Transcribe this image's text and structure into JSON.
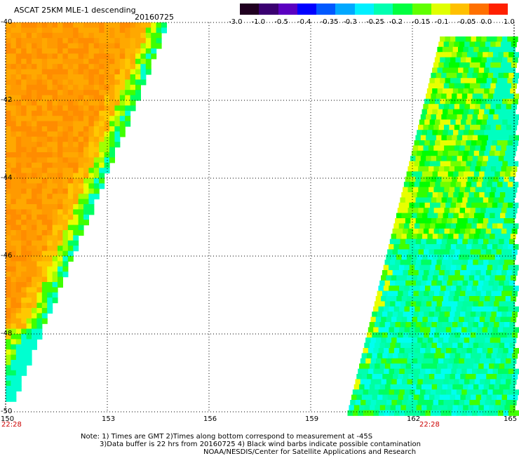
{
  "title": {
    "product": "ASCAT 25KM MLE-1 descending",
    "date": "20160725"
  },
  "colorbar": {
    "tick_labels": [
      "-3.0",
      "-1.0",
      "-0.5",
      "-0.4",
      "-0.35",
      "-0.3",
      "-0.25",
      "-0.2",
      "-0.15",
      "-0.1",
      "-0.05",
      "0.0",
      "1.0"
    ],
    "colors": [
      "#200020",
      "#3a0070",
      "#5a00c0",
      "#0000ff",
      "#0058ff",
      "#00a8ff",
      "#00f0ff",
      "#00ffb0",
      "#00ff40",
      "#60ff00",
      "#e0ff00",
      "#ffc000",
      "#ff7000",
      "#ff2000"
    ]
  },
  "axes": {
    "lat_labels": [
      "-40",
      "-42",
      "-44",
      "-46",
      "-48",
      "-50"
    ],
    "lon_labels": [
      "150",
      "153",
      "156",
      "159",
      "162",
      "165"
    ],
    "lat_range": [
      -50,
      -40
    ],
    "lon_range": [
      150,
      165
    ]
  },
  "time_labels": {
    "left": "22:28",
    "right": "22:28"
  },
  "notes": {
    "line1": "Note: 1) Times are GMT 2)Times along bottom correspond to measurement at -45S",
    "line2": "3)Data buffer is 22 hrs from 20160725 4) Black wind barbs indicate possible contamination",
    "line3": "NOAA/NESDIS/Center for Satellite Applications and Research"
  }
}
